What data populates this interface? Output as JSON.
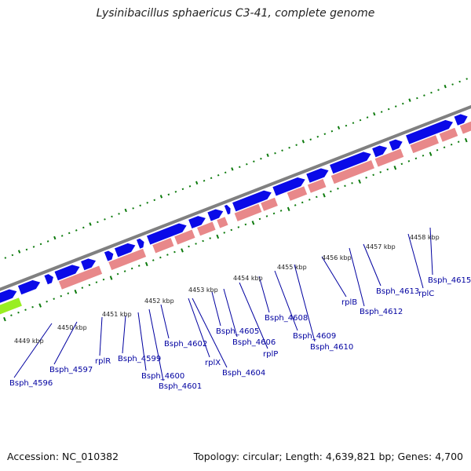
{
  "header": {
    "title": "Lysinibacillus sphaericus C3-41, complete genome"
  },
  "footer": {
    "accession": "Accession: NC_010382",
    "summary": "Topology: circular; Length: 4,639,821 bp; Genes: 4,700"
  },
  "colors": {
    "forward_gene": "#0a0ae8",
    "cds": "#e8888a",
    "other_feature": "#b0b0b0",
    "rna": "#99ee22",
    "backbone": "#808080",
    "tick": "#0c7a0c",
    "label": "#0000a0"
  },
  "scale_labels": [
    "4449 kbp",
    "4450 kbp",
    "4451 kbp",
    "4452 kbp",
    "4453 kbp",
    "4454 kbp",
    "4455 kbp",
    "4456 kbp",
    "4457 kbp",
    "4458 kbp"
  ],
  "gene_labels": [
    "Bsph_4596",
    "Bsph_4597",
    "rplR",
    "Bsph_4599",
    "Bsph_4600",
    "Bsph_4601",
    "Bsph_4602",
    "rplX",
    "Bsph_4604",
    "Bsph_4605",
    "Bsph_4606",
    "rplP",
    "Bsph_4608",
    "Bsph_4609",
    "Bsph_4610",
    "rplB",
    "Bsph_4612",
    "Bsph_4613",
    "rplC",
    "Bsph_4615"
  ]
}
